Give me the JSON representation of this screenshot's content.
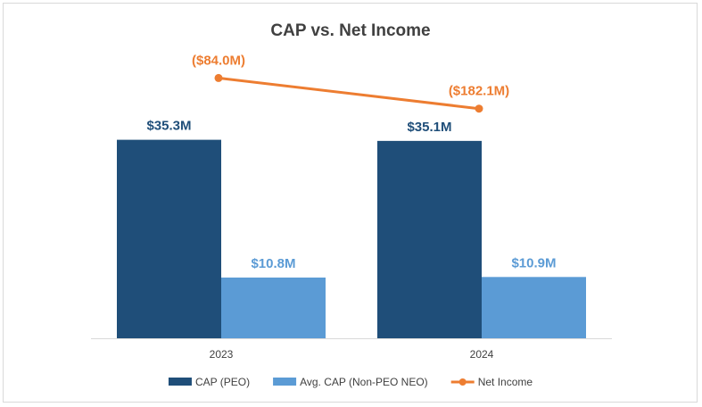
{
  "chart_data": {
    "type": "bar",
    "title": "CAP vs. Net Income",
    "categories": [
      "2023",
      "2024"
    ],
    "series": [
      {
        "name": "CAP (PEO)",
        "kind": "bar",
        "values": [
          35.3,
          35.1
        ],
        "labels": [
          "$35.3M",
          "$35.1M"
        ],
        "color": "#1f4e79"
      },
      {
        "name": "Avg. CAP (Non-PEO NEO)",
        "kind": "bar",
        "values": [
          10.8,
          10.9
        ],
        "labels": [
          "$10.8M",
          "$10.9M"
        ],
        "color": "#5b9bd5"
      },
      {
        "name": "Net Income",
        "kind": "line",
        "values": [
          -84.0,
          -182.1
        ],
        "labels": [
          "($84.0M)",
          "($182.1M)"
        ],
        "color": "#ed7d31"
      }
    ],
    "legend_position": "bottom",
    "grid": false,
    "units": "$M"
  }
}
